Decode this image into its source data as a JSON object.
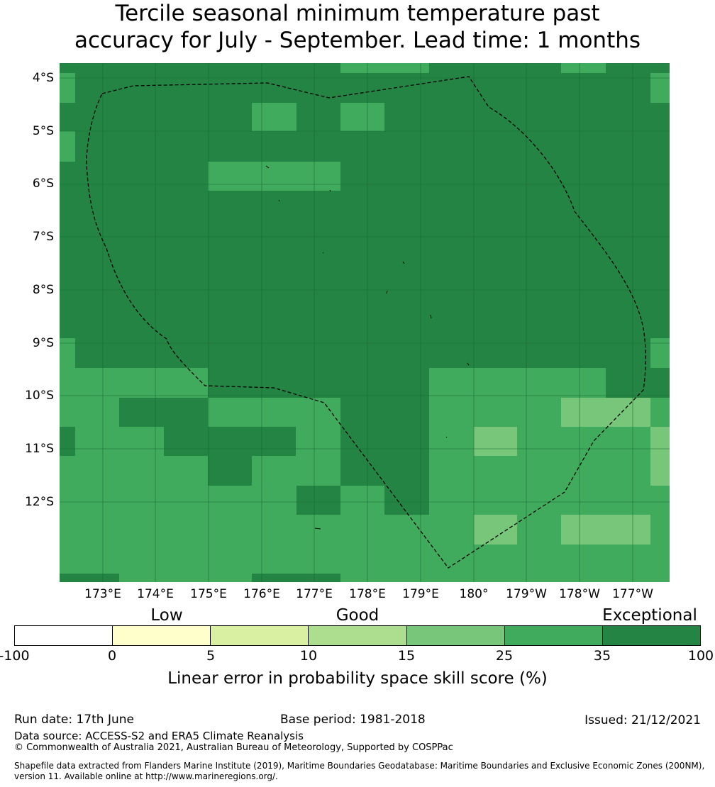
{
  "title": {
    "line1": "Tercile seasonal minimum temperature past",
    "line2": "accuracy for July - September. Lead time: 1 months"
  },
  "map": {
    "lat_labels": [
      "4°S",
      "5°S",
      "6°S",
      "7°S",
      "8°S",
      "9°S",
      "10°S",
      "11°S",
      "12°S"
    ],
    "lon_labels": [
      "173°E",
      "174°E",
      "175°E",
      "176°E",
      "177°E",
      "178°E",
      "179°E",
      "180°",
      "179°W",
      "178°W",
      "177°W"
    ],
    "colors": {
      "c25": "#41ab5d",
      "c35": "#238443",
      "c15": "#78c679",
      "c10": "#addd8e",
      "c5": "#d9f0a3",
      "c0": "#ffffcc",
      "cneg": "#ffffff"
    },
    "category_grid": [
      "bbbbbbbbbbbbbbbbbbbbbbbbbbbbbbbb",
      "bbbbbbbbbbbbbbbbbbbbbbbbbbbbbbbb",
      "bbbbbbbbbbbbbbbbbbbbbbbbbbbbbbbb"
    ],
    "eez_label": ""
  },
  "colorbar": {
    "colors": [
      "#ffffff",
      "#ffffcc",
      "#d9f0a3",
      "#addd8e",
      "#78c679",
      "#41ab5d",
      "#238443"
    ],
    "ticks": [
      "-100",
      "0",
      "5",
      "10",
      "15",
      "25",
      "35",
      "100"
    ],
    "categories": [
      "Low",
      "Good",
      "Exceptional"
    ],
    "title": "Linear error in probability space skill score (%)"
  },
  "footer": {
    "run_date": "Run date: 17th June",
    "base_period": "Base period: 1981-2018",
    "issued": "Issued: 21/12/2021",
    "data_source": "Data source: ACCESS-S2 and ERA5 Climate Reanalysis",
    "copyright": "© Commonwealth of Australia 2021, Australian Bureau of Meteorology, Supported by COSPPac",
    "shapefile_line1": "Shapefile data extracted from Flanders Marine Institute (2019), Maritime Boundaries Geodatabase: Maritime Boundaries and Exclusive Economic Zones (200NM),",
    "shapefile_line2": "version 11. Available online at http://www.marineregions.org/."
  }
}
